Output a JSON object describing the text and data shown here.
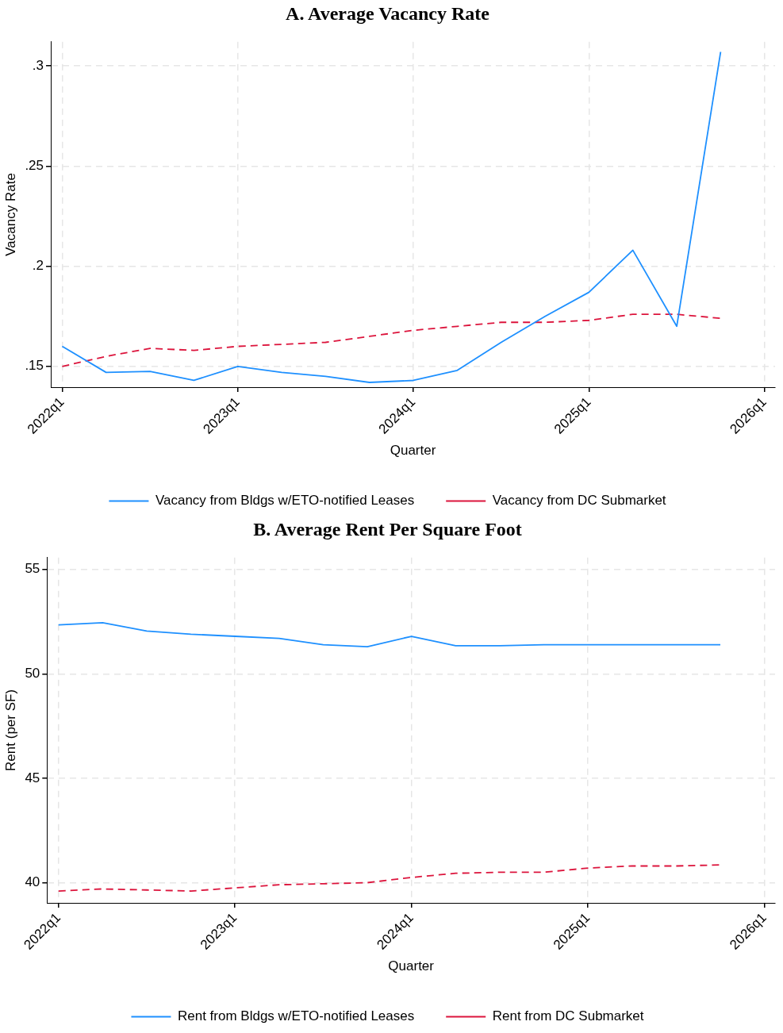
{
  "chart_data": [
    {
      "type": "line",
      "title": "A. Average Vacancy Rate",
      "xlabel": "Quarter",
      "ylabel": "Vacancy Rate",
      "categories": [
        "2022q1",
        null,
        null,
        null,
        "2023q1",
        null,
        null,
        null,
        "2024q1",
        null,
        null,
        null,
        "2025q1",
        null,
        null,
        null,
        "2026q1"
      ],
      "series": [
        {
          "name": "Vacancy from Bldgs w/ETO-notified Leases",
          "color": "#1e90ff",
          "line_style": "solid",
          "values": [
            0.16,
            0.147,
            0.1475,
            0.143,
            0.15,
            0.147,
            0.145,
            0.142,
            0.143,
            0.148,
            0.162,
            0.175,
            0.187,
            0.208,
            0.17,
            0.307,
            null
          ]
        },
        {
          "name": "Vacancy from DC Submarket",
          "color": "#dc143c",
          "line_style": "dashed",
          "values": [
            0.15,
            0.155,
            0.159,
            0.158,
            0.16,
            0.161,
            0.162,
            0.165,
            0.168,
            0.17,
            0.172,
            0.172,
            0.173,
            0.176,
            0.176,
            0.174,
            null
          ]
        }
      ],
      "ylim": [
        0.1396,
        0.312
      ],
      "yticks": [
        {
          "value": 0.15,
          "label": ".15"
        },
        {
          "value": 0.2,
          "label": ".2"
        },
        {
          "value": 0.25,
          "label": ".25"
        },
        {
          "value": 0.3,
          "label": ".3"
        }
      ],
      "grid": true,
      "legend": "bottom",
      "marker": "none"
    },
    {
      "type": "line",
      "title": "B. Average Rent Per Square Foot",
      "xlabel": "Quarter",
      "ylabel": "Rent (per SF)",
      "categories": [
        "2022q1",
        null,
        null,
        null,
        "2023q1",
        null,
        null,
        null,
        "2024q1",
        null,
        null,
        null,
        "2025q1",
        null,
        null,
        null,
        "2026q1"
      ],
      "series": [
        {
          "name": "Rent from Bldgs w/ETO-notified Leases",
          "color": "#1e90ff",
          "line_style": "solid",
          "values": [
            52.35,
            52.45,
            52.05,
            51.9,
            51.8,
            51.7,
            51.4,
            51.3,
            51.8,
            51.35,
            51.35,
            51.4,
            51.4,
            51.4,
            51.4,
            51.4,
            null
          ]
        },
        {
          "name": "Rent from DC Submarket",
          "color": "#dc143c",
          "line_style": "dashed",
          "values": [
            39.6,
            39.7,
            39.65,
            39.6,
            39.75,
            39.9,
            39.95,
            40.0,
            40.25,
            40.45,
            40.5,
            40.5,
            40.7,
            40.8,
            40.8,
            40.85,
            null
          ]
        }
      ],
      "ylim": [
        39.03,
        55.57
      ],
      "yticks": [
        40,
        45,
        50,
        55
      ],
      "grid": true,
      "legend": "bottom",
      "marker": "none"
    }
  ]
}
